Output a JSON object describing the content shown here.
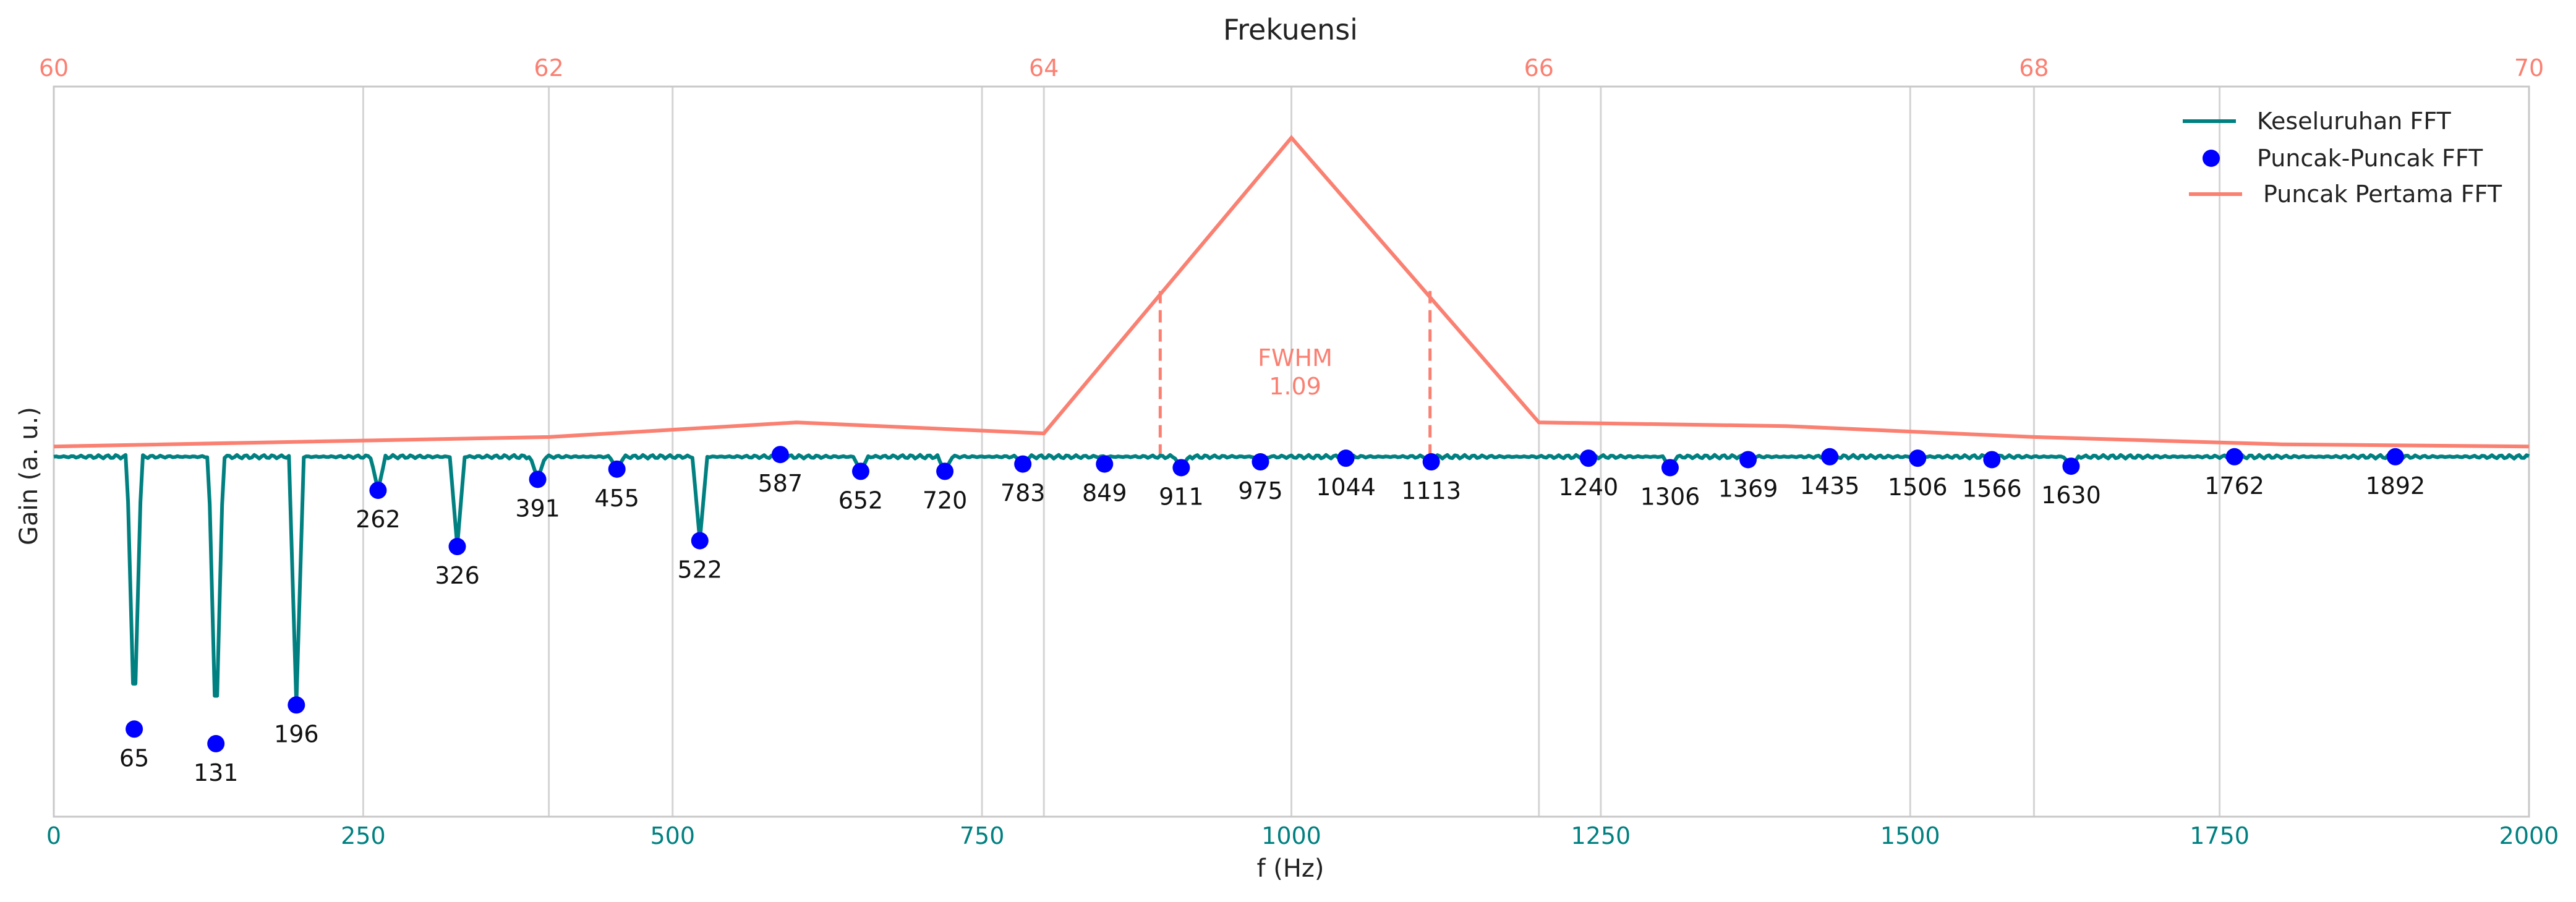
{
  "chart_data": {
    "type": "line",
    "title": "",
    "top_axis_label": "Frekuensi",
    "xlabel": "f (Hz)",
    "ylabel": "Gain (a. u.)",
    "grid": true,
    "legend_position": "top-right",
    "bottom_axis": {
      "range": [
        0,
        2000
      ],
      "ticks": [
        0,
        250,
        500,
        750,
        1000,
        1250,
        1500,
        1750,
        2000
      ]
    },
    "top_axis": {
      "range": [
        60,
        70
      ],
      "ticks": [
        60,
        62,
        64,
        66,
        68,
        70
      ]
    },
    "y_range": [
      0,
      1
    ],
    "colors": {
      "fft": "#008080",
      "peaks": "#0000ff",
      "first_peak": "#fa8072"
    },
    "series": [
      {
        "name": "Keseluruhan FFT",
        "style": "line",
        "baseline": 0.493,
        "dips": [
          [
            65,
            0.12
          ],
          [
            131,
            0.1
          ],
          [
            196,
            0.153
          ],
          [
            262,
            0.447
          ],
          [
            326,
            0.37
          ],
          [
            391,
            0.462
          ],
          [
            455,
            0.476
          ],
          [
            522,
            0.378
          ],
          [
            652,
            0.473
          ],
          [
            720,
            0.473
          ],
          [
            783,
            0.483
          ],
          [
            911,
            0.478
          ],
          [
            975,
            0.486
          ],
          [
            1306,
            0.478
          ],
          [
            1630,
            0.48
          ]
        ]
      },
      {
        "name": "Puncak-Puncak FFT",
        "style": "markers",
        "points": [
          [
            65,
            0.12
          ],
          [
            131,
            0.1
          ],
          [
            196,
            0.153
          ],
          [
            262,
            0.447
          ],
          [
            326,
            0.37
          ],
          [
            391,
            0.462
          ],
          [
            455,
            0.476
          ],
          [
            522,
            0.378
          ],
          [
            587,
            0.496
          ],
          [
            652,
            0.473
          ],
          [
            720,
            0.473
          ],
          [
            783,
            0.483
          ],
          [
            849,
            0.483
          ],
          [
            911,
            0.478
          ],
          [
            975,
            0.486
          ],
          [
            1044,
            0.491
          ],
          [
            1113,
            0.486
          ],
          [
            1240,
            0.491
          ],
          [
            1306,
            0.478
          ],
          [
            1369,
            0.489
          ],
          [
            1435,
            0.493
          ],
          [
            1506,
            0.491
          ],
          [
            1566,
            0.489
          ],
          [
            1630,
            0.48
          ],
          [
            1762,
            0.493
          ],
          [
            1892,
            0.493
          ]
        ]
      },
      {
        "name": "Puncak Pertama FFT",
        "style": "line",
        "axis": "top",
        "points": [
          [
            60,
            0.507
          ],
          [
            62,
            0.52
          ],
          [
            63,
            0.54
          ],
          [
            64,
            0.525
          ],
          [
            65,
            0.93
          ],
          [
            66,
            0.54
          ],
          [
            67,
            0.535
          ],
          [
            68,
            0.52
          ],
          [
            69,
            0.51
          ],
          [
            70,
            0.507
          ]
        ]
      }
    ],
    "fwhm": {
      "label": "FWHM",
      "value": "1.09",
      "left": 64.47,
      "right": 65.56,
      "level": 0.72
    }
  }
}
